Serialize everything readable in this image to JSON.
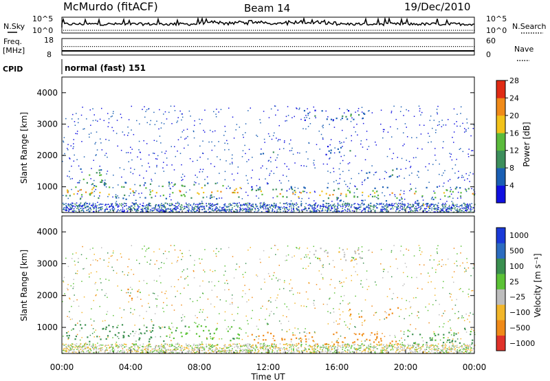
{
  "header": {
    "station": "McMurdo (fitACF)",
    "beam": "Beam 14",
    "date": "19/Dec/2010"
  },
  "top_panels": {
    "nsky_label": "N.Sky",
    "nsky_ticks": [
      "10^5",
      "10^0"
    ],
    "nsearch_label": "N.Search",
    "nsearch_ticks": [
      "10^5",
      "10^0"
    ],
    "freq_label_1": "Freq.",
    "freq_label_2": "[MHz]",
    "freq_ticks": [
      "18",
      "8"
    ],
    "nave_label": "Nave",
    "nave_ticks": [
      "60",
      "0"
    ],
    "cpid_label": "CPID",
    "cpid_value": "normal (fast) 151"
  },
  "chart_data": [
    {
      "type": "heatmap",
      "name": "power",
      "ylabel": "Slant Range [km]",
      "yticks": [
        "1000",
        "2000",
        "3000",
        "4000"
      ],
      "ylim": [
        180,
        4500
      ],
      "colorbar_label": "Power [dB]",
      "colorbar_ticks": [
        "4",
        "8",
        "12",
        "16",
        "20",
        "24",
        "28"
      ],
      "colors": [
        "#1010e0",
        "#1a5fb4",
        "#3d8f5c",
        "#5bbb3c",
        "#f2c21a",
        "#f08a18",
        "#e02b14"
      ],
      "echo_bands": [
        {
          "t0": 0.2,
          "t1": 10.4,
          "r0": 600,
          "r1": 1150,
          "max_db": 28
        },
        {
          "t0": 11.0,
          "t1": 24.0,
          "r0": 550,
          "r1": 1000,
          "max_db": 24
        },
        {
          "t0": 1.0,
          "t1": 2.5,
          "r0": 1000,
          "r1": 1600,
          "max_db": 20
        },
        {
          "t0": 14.0,
          "t1": 17.8,
          "r0": 3100,
          "r1": 3450,
          "max_db": 14
        },
        {
          "t0": 11.4,
          "t1": 12.4,
          "r0": 2000,
          "r1": 2200,
          "max_db": 12
        },
        {
          "t0": 18.8,
          "t1": 19.8,
          "r0": 1300,
          "r1": 1650,
          "max_db": 16
        },
        {
          "t0": 17.2,
          "t1": 18.0,
          "r0": 1250,
          "r1": 1500,
          "max_db": 16
        },
        {
          "t0": 15.0,
          "t1": 16.8,
          "r0": 2000,
          "r1": 2300,
          "max_db": 12
        },
        {
          "t0": 21.0,
          "t1": 22.5,
          "r0": 300,
          "r1": 500,
          "max_db": 24
        }
      ]
    },
    {
      "type": "heatmap",
      "name": "velocity",
      "xlabel": "Time UT",
      "ylabel": "Slant Range [km]",
      "xticks": [
        "00:00",
        "04:00",
        "08:00",
        "12:00",
        "16:00",
        "20:00",
        "00:00"
      ],
      "xlim": [
        0,
        24
      ],
      "yticks": [
        "1000",
        "2000",
        "3000",
        "4000"
      ],
      "ylim": [
        180,
        4500
      ],
      "colorbar_label": "Velocity [m s⁻¹]",
      "colorbar_ticks": [
        "1000",
        "500",
        "100",
        "25",
        "−25",
        "−100",
        "−500",
        "−1000"
      ],
      "colors": [
        "#1a3ad8",
        "#2c6cc0",
        "#3a8f4f",
        "#5bc236",
        "#bdbdbd",
        "#f2b62a",
        "#f08a18",
        "#e0322a"
      ],
      "echo_bands": [
        {
          "t0": 0.2,
          "t1": 6.0,
          "r0": 550,
          "r1": 1100,
          "velocity": 300
        },
        {
          "t0": 6.0,
          "t1": 10.4,
          "r0": 550,
          "r1": 1050,
          "velocity": 80
        },
        {
          "t0": 11.0,
          "t1": 20.0,
          "r0": 450,
          "r1": 850,
          "velocity": -200
        },
        {
          "t0": 20.0,
          "t1": 24.0,
          "r0": 500,
          "r1": 1000,
          "velocity": 120
        },
        {
          "t0": 14.2,
          "t1": 17.8,
          "r0": 3100,
          "r1": 3500,
          "velocity": 0
        },
        {
          "t0": 16.4,
          "t1": 17.4,
          "r0": 1300,
          "r1": 1600,
          "velocity": -150
        },
        {
          "t0": 18.8,
          "t1": 19.8,
          "r0": 1300,
          "r1": 1650,
          "velocity": -300
        },
        {
          "t0": 3.8,
          "t1": 4.4,
          "r0": 1900,
          "r1": 2300,
          "velocity": -300
        }
      ]
    }
  ]
}
